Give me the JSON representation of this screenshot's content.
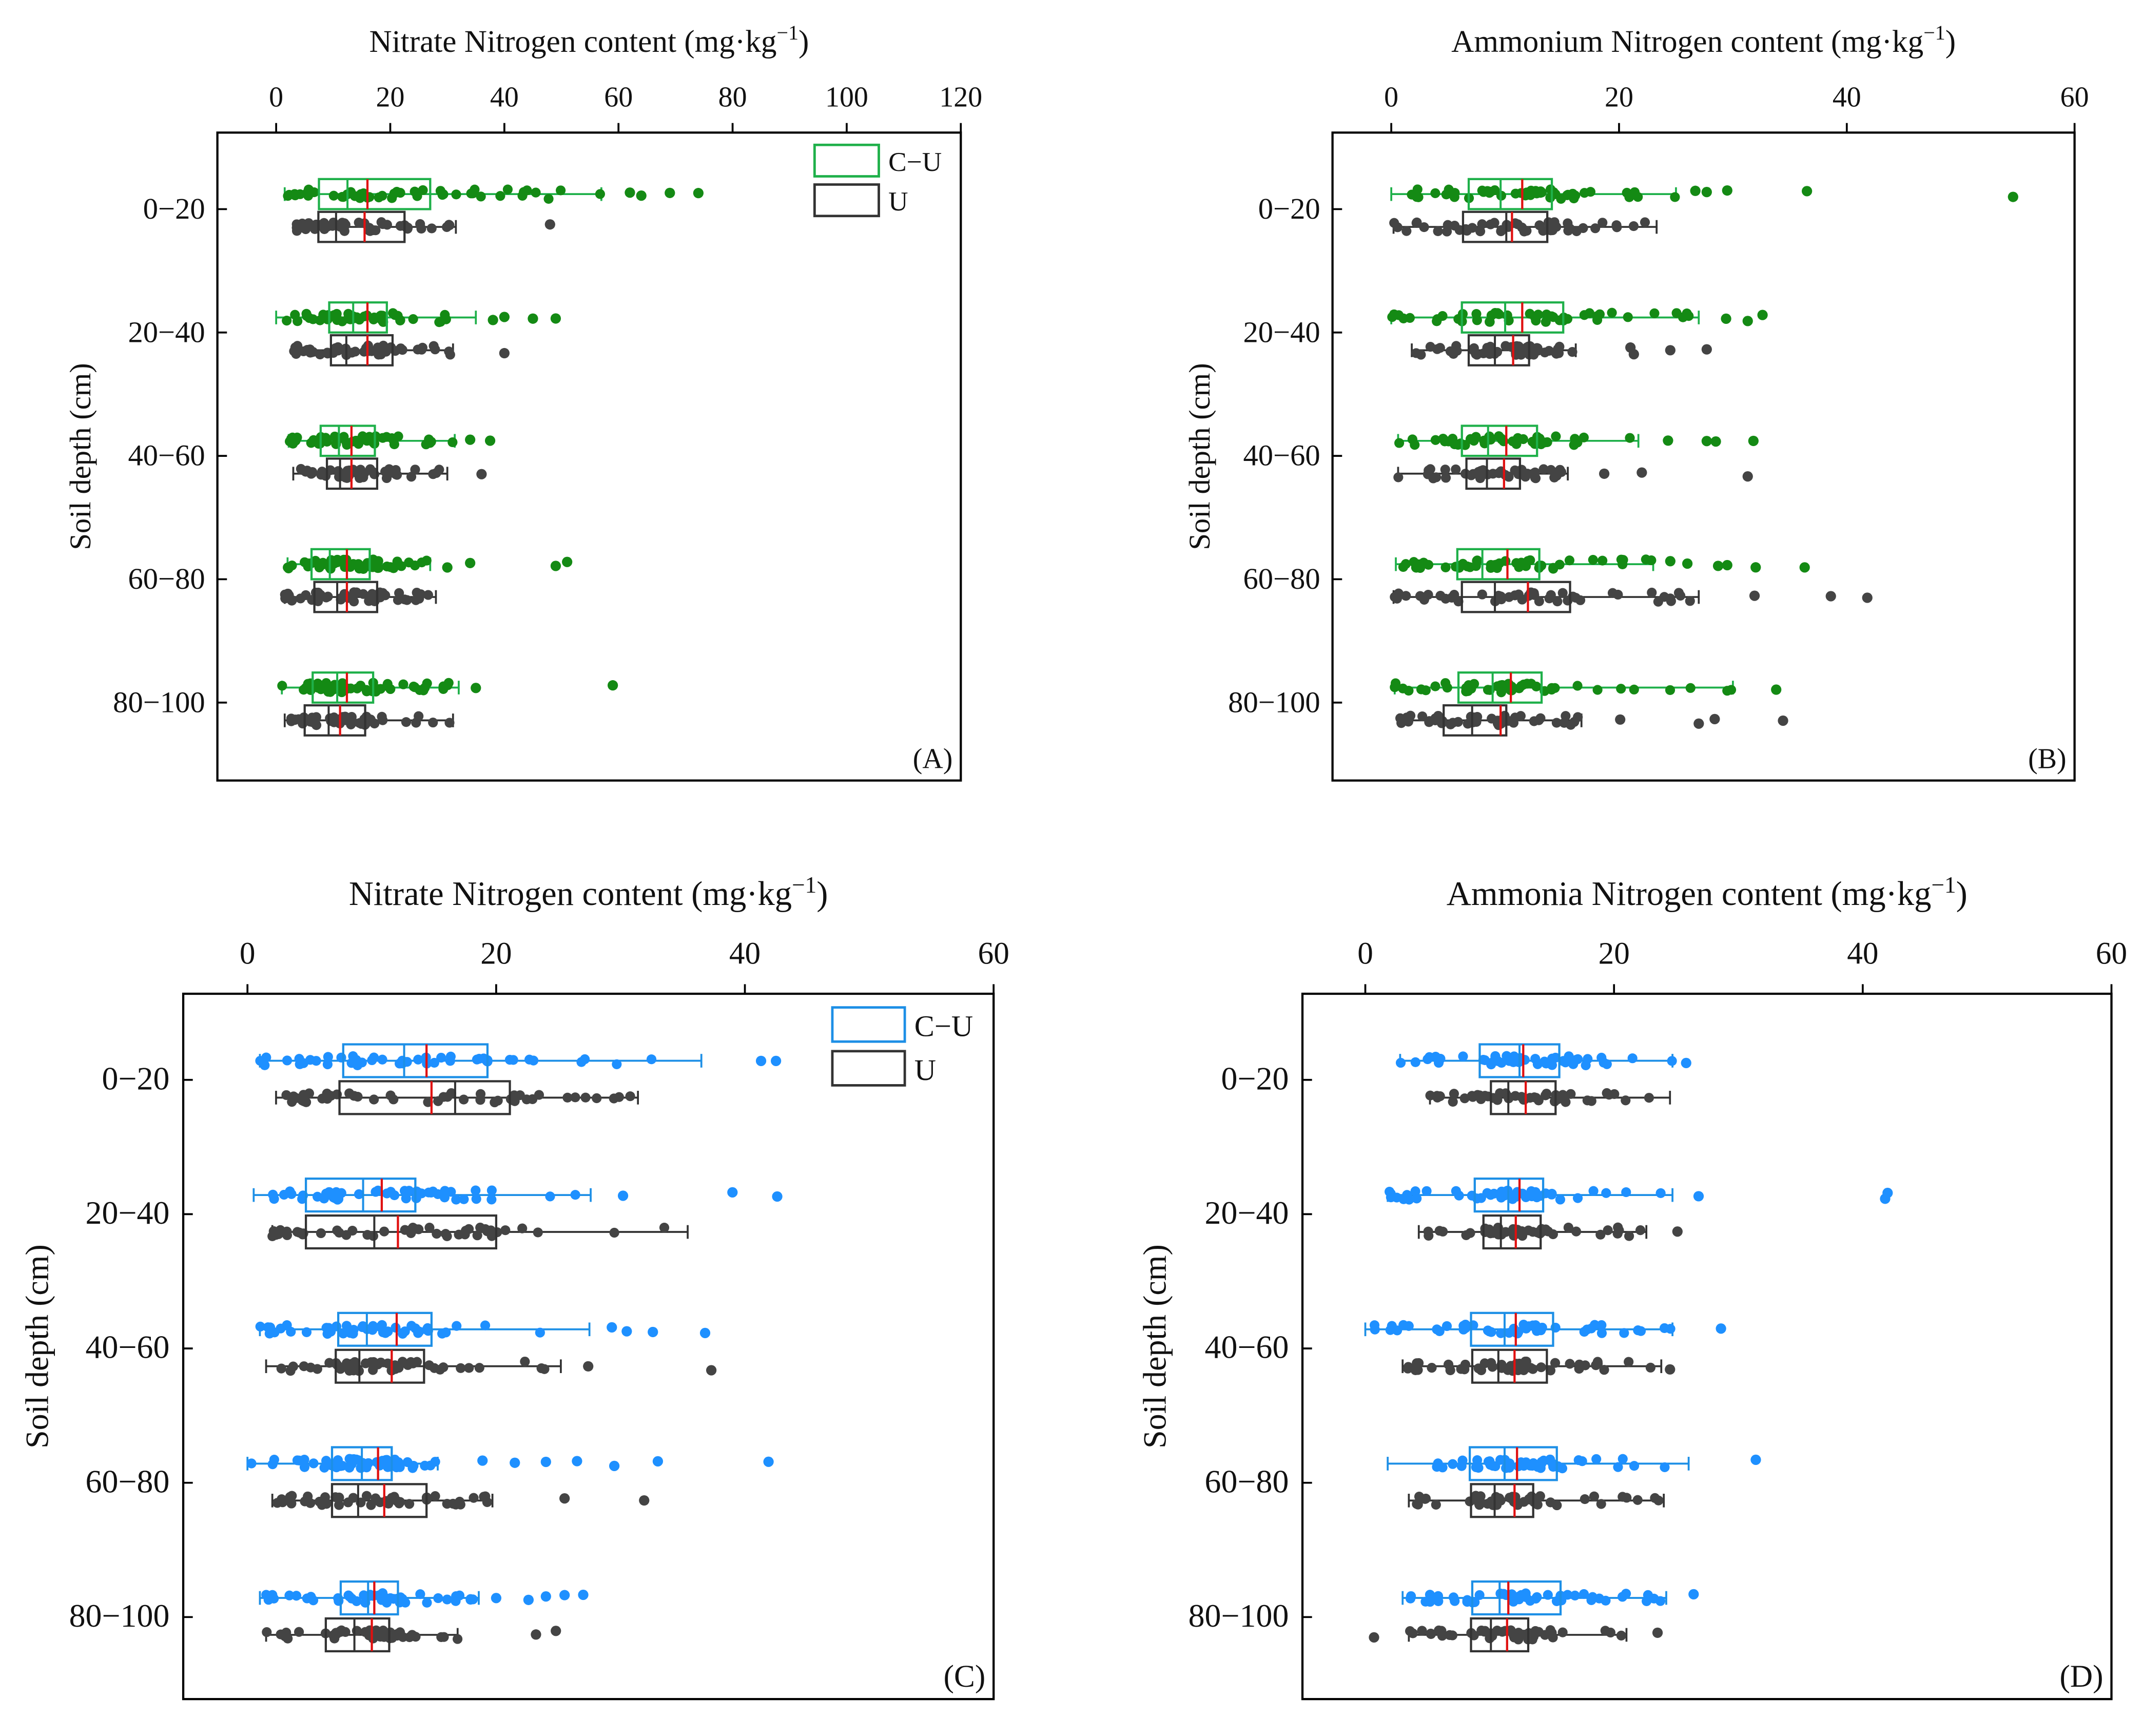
{
  "colors": {
    "cu_green_box": "#1fb04a",
    "cu_green_point": "#148a14",
    "cu_blue_box": "#1d8fe6",
    "cu_blue_point": "#1e90ff",
    "u_box": "#333333",
    "u_point": "#444444",
    "mean_line": "#e01010"
  },
  "chart_data": [
    {
      "id": "A",
      "type": "box-scatter",
      "panel_label": "(A)",
      "title": "Nitrate Nitrogen content (mg·kg",
      "title_sup": "−1",
      "title_end": ")",
      "xlabel": "Nitrate Nitrogen content (mg·kg−1)",
      "ylabel": "Soil depth (cm)",
      "xlim": [
        0,
        120
      ],
      "xticks": [
        "0",
        "20",
        "40",
        "60",
        "80",
        "100",
        "120"
      ],
      "categories": [
        "0−20",
        "20−40",
        "40−60",
        "60−80",
        "80−100"
      ],
      "legend": {
        "position": "top-right",
        "entries": [
          "C−U",
          "U"
        ]
      },
      "series": [
        {
          "name": "C−U",
          "color_key": "green",
          "boxes": [
            {
              "lo": 1.5,
              "q1": 7.5,
              "median": 12.5,
              "mean": 16,
              "q3": 27,
              "hi": 57,
              "outliers": [
                62,
                64,
                69,
                74
              ]
            },
            {
              "lo": 0,
              "q1": 9.3,
              "median": 13.5,
              "mean": 16,
              "q3": 19.4,
              "hi": 35,
              "outliers": [
                38,
                40,
                45,
                49
              ]
            },
            {
              "lo": 2.2,
              "q1": 7.8,
              "median": 11,
              "mean": 13.2,
              "q3": 17.3,
              "hi": 31.3,
              "outliers": [
                34,
                37.5
              ]
            },
            {
              "lo": 2,
              "q1": 6.2,
              "median": 9.4,
              "mean": 12.4,
              "q3": 16.4,
              "hi": 27,
              "outliers": [
                30,
                34,
                49,
                51
              ]
            },
            {
              "lo": 1,
              "q1": 6.4,
              "median": 10.7,
              "mean": 12.4,
              "q3": 17,
              "hi": 32,
              "outliers": [
                35,
                59
              ]
            }
          ]
        },
        {
          "name": "U",
          "color_key": "grey",
          "boxes": [
            {
              "lo": 3.5,
              "q1": 7.4,
              "median": 10.5,
              "mean": 15.5,
              "q3": 22.5,
              "hi": 31.5,
              "outliers": [
                48
              ]
            },
            {
              "lo": 3,
              "q1": 9.6,
              "median": 12.3,
              "mean": 16,
              "q3": 20.4,
              "hi": 31,
              "outliers": [
                40
              ]
            },
            {
              "lo": 3,
              "q1": 8.9,
              "median": 11.2,
              "mean": 13.2,
              "q3": 17.7,
              "hi": 30,
              "outliers": [
                36
              ]
            },
            {
              "lo": 1.5,
              "q1": 6.7,
              "median": 10.7,
              "mean": 12.4,
              "q3": 17.7,
              "hi": 28,
              "outliers": []
            },
            {
              "lo": 1.5,
              "q1": 5,
              "median": 9.2,
              "mean": 11.2,
              "q3": 15.6,
              "hi": 31,
              "outliers": []
            }
          ]
        }
      ]
    },
    {
      "id": "B",
      "type": "box-scatter",
      "panel_label": "(B)",
      "title": "Ammonium Nitrogen content (mg·kg",
      "title_sup": "−1",
      "title_end": ")",
      "xlabel": "Ammonium Nitrogen content (mg·kg−1)",
      "ylabel": "Soil depth (cm)",
      "xlim": [
        0,
        60
      ],
      "xticks": [
        "0",
        "20",
        "40",
        "60"
      ],
      "categories": [
        "0−20",
        "20−40",
        "40−60",
        "60−80",
        "80−100"
      ],
      "series": [
        {
          "name": "C−U",
          "color_key": "green",
          "boxes": [
            {
              "lo": 0,
              "q1": 6.8,
              "median": 9.6,
              "mean": 11.5,
              "q3": 14.1,
              "hi": 25,
              "outliers": [
                26.7,
                27.7,
                29.5,
                36.5,
                54.6
              ]
            },
            {
              "lo": 0,
              "q1": 6.2,
              "median": 10,
              "mean": 11.5,
              "q3": 15.1,
              "hi": 27,
              "outliers": [
                29.4,
                31.3,
                32.6
              ]
            },
            {
              "lo": 0.6,
              "q1": 6.2,
              "median": 8.5,
              "mean": 10.1,
              "q3": 12.8,
              "hi": 21.7,
              "outliers": [
                24.3,
                27.7,
                28.5,
                31.8
              ]
            },
            {
              "lo": 0.4,
              "q1": 5.8,
              "median": 8,
              "mean": 10.2,
              "q3": 13,
              "hi": 23,
              "outliers": [
                24.5,
                26,
                28.7,
                29.5,
                32,
                36.3
              ]
            },
            {
              "lo": 0.3,
              "q1": 5.9,
              "median": 8.9,
              "mean": 10.5,
              "q3": 13.2,
              "hi": 30,
              "outliers": [
                33.8
              ]
            }
          ]
        },
        {
          "name": "U",
          "color_key": "grey",
          "boxes": [
            {
              "lo": 0.2,
              "q1": 6.3,
              "median": 10.1,
              "mean": 10.6,
              "q3": 13.7,
              "hi": 23.3,
              "outliers": []
            },
            {
              "lo": 1.8,
              "q1": 6.8,
              "median": 9.1,
              "mean": 10.7,
              "q3": 12.1,
              "hi": 16.2,
              "outliers": [
                21,
                21.3,
                24.5,
                27.7
              ]
            },
            {
              "lo": 0.6,
              "q1": 6.6,
              "median": 8.4,
              "mean": 9.9,
              "q3": 11.3,
              "hi": 15.5,
              "outliers": [
                18.7,
                22,
                31.3
              ]
            },
            {
              "lo": 0.2,
              "q1": 6.2,
              "median": 9.1,
              "mean": 12,
              "q3": 15.7,
              "hi": 27,
              "outliers": [
                31.9,
                38.6,
                41.8
              ]
            },
            {
              "lo": 0.7,
              "q1": 4.6,
              "median": 7.1,
              "mean": 9.6,
              "q3": 10.1,
              "hi": 16.7,
              "outliers": [
                20.1,
                27,
                28.4,
                34.4
              ]
            }
          ]
        }
      ]
    },
    {
      "id": "C",
      "type": "box-scatter",
      "panel_label": "(C)",
      "title": "Nitrate Nitrogen content (mg·kg",
      "title_sup": "−1",
      "title_end": ")",
      "xlabel": "Nitrate Nitrogen content (mg·kg−1)",
      "ylabel": "Soil depth (cm)",
      "xlim": [
        0,
        60
      ],
      "xticks": [
        "0",
        "20",
        "40",
        "60"
      ],
      "categories": [
        "0−20",
        "20−40",
        "40−60",
        "60−80",
        "80−100"
      ],
      "legend": {
        "position": "top-right",
        "entries": [
          "C−U",
          "U"
        ]
      },
      "series": [
        {
          "name": "C−U",
          "color_key": "blue",
          "boxes": [
            {
              "lo": 1,
              "q1": 7.7,
              "median": 12.6,
              "mean": 14.4,
              "q3": 19.3,
              "hi": 36.5,
              "outliers": [
                41.3,
                42.5
              ]
            },
            {
              "lo": 0.5,
              "q1": 4.7,
              "median": 9.3,
              "mean": 10.8,
              "q3": 13.5,
              "hi": 27.6,
              "outliers": [
                30.2,
                39,
                42.6
              ]
            },
            {
              "lo": 1,
              "q1": 7.3,
              "median": 9.6,
              "mean": 12,
              "q3": 14.8,
              "hi": 27.5,
              "outliers": [
                29.3,
                30.5,
                32.6,
                36.8
              ]
            },
            {
              "lo": 0,
              "q1": 6.8,
              "median": 9.2,
              "mean": 10.5,
              "q3": 11.6,
              "hi": 15.3,
              "outliers": [
                18.9,
                21.5,
                24,
                26.5,
                29.5,
                33,
                41.9
              ]
            },
            {
              "lo": 1,
              "q1": 7.5,
              "median": 9.7,
              "mean": 10.2,
              "q3": 12.1,
              "hi": 18.6,
              "outliers": [
                20,
                22.6,
                24,
                25.5,
                27
              ]
            }
          ]
        },
        {
          "name": "U",
          "color_key": "grey",
          "boxes": [
            {
              "lo": 2.3,
              "q1": 7.4,
              "median": 16.7,
              "mean": 14.8,
              "q3": 21.1,
              "hi": 31.4,
              "outliers": []
            },
            {
              "lo": 2,
              "q1": 4.7,
              "median": 10.2,
              "mean": 12.1,
              "q3": 20,
              "hi": 35.4,
              "outliers": []
            },
            {
              "lo": 1.5,
              "q1": 7.1,
              "median": 9,
              "mean": 11.6,
              "q3": 14.2,
              "hi": 25.2,
              "outliers": [
                27.4,
                37.3
              ]
            },
            {
              "lo": 2,
              "q1": 6.8,
              "median": 8.9,
              "mean": 11,
              "q3": 14.4,
              "hi": 19.7,
              "outliers": [
                25.5,
                31.9
              ]
            },
            {
              "lo": 1.5,
              "q1": 6.3,
              "median": 8.6,
              "mean": 10,
              "q3": 11.4,
              "hi": 16.9,
              "outliers": [
                23.2,
                24.8
              ]
            }
          ]
        }
      ]
    },
    {
      "id": "D",
      "type": "box-scatter",
      "panel_label": "(D)",
      "title": "Ammonia Nitrogen content (mg·kg",
      "title_sup": "−1",
      "title_end": ")",
      "xlabel": "Ammonia Nitrogen content (mg·kg−1)",
      "ylabel": "Soil depth (cm)",
      "xlim": [
        0,
        60
      ],
      "xticks": [
        "0",
        "20",
        "40",
        "60"
      ],
      "categories": [
        "0−20",
        "20−40",
        "40−60",
        "60−80",
        "80−100"
      ],
      "series": [
        {
          "name": "C−U",
          "color_key": "blue",
          "boxes": [
            {
              "lo": 2.8,
              "q1": 9.2,
              "median": 12.4,
              "mean": 12.7,
              "q3": 15.6,
              "hi": 24.7,
              "outliers": [
                25.8
              ]
            },
            {
              "lo": 1.8,
              "q1": 8.8,
              "median": 11.5,
              "mean": 12.4,
              "q3": 14.3,
              "hi": 24.7,
              "outliers": [
                26.8,
                41.8,
                42
              ]
            },
            {
              "lo": 0,
              "q1": 8.5,
              "median": 11.2,
              "mean": 12.1,
              "q3": 15.1,
              "hi": 24.7,
              "outliers": [
                28.6
              ]
            },
            {
              "lo": 1.8,
              "q1": 8.4,
              "median": 11.2,
              "mean": 12.2,
              "q3": 15.4,
              "hi": 26,
              "outliers": [
                31.4
              ]
            },
            {
              "lo": 3,
              "q1": 8.6,
              "median": 10.8,
              "mean": 11.5,
              "q3": 15.7,
              "hi": 24.2,
              "outliers": [
                26.4
              ]
            }
          ]
        },
        {
          "name": "U",
          "color_key": "grey",
          "boxes": [
            {
              "lo": 5.2,
              "q1": 10.1,
              "median": 11.5,
              "mean": 12.9,
              "q3": 15.3,
              "hi": 24.5,
              "outliers": []
            },
            {
              "lo": 4.3,
              "q1": 9.5,
              "median": 10.9,
              "mean": 12.1,
              "q3": 14.1,
              "hi": 22.6,
              "outliers": [
                25.1
              ]
            },
            {
              "lo": 3,
              "q1": 8.6,
              "median": 10.7,
              "mean": 12,
              "q3": 14.6,
              "hi": 23.8,
              "outliers": [
                24.5
              ]
            },
            {
              "lo": 3.5,
              "q1": 8.5,
              "median": 10.4,
              "mean": 12,
              "q3": 13.5,
              "hi": 24,
              "outliers": []
            },
            {
              "lo": 3.5,
              "q1": 8.5,
              "median": 10.1,
              "mean": 11.4,
              "q3": 13.1,
              "hi": 21,
              "outliers": [
                0.7,
                23.5
              ]
            }
          ]
        }
      ]
    }
  ]
}
